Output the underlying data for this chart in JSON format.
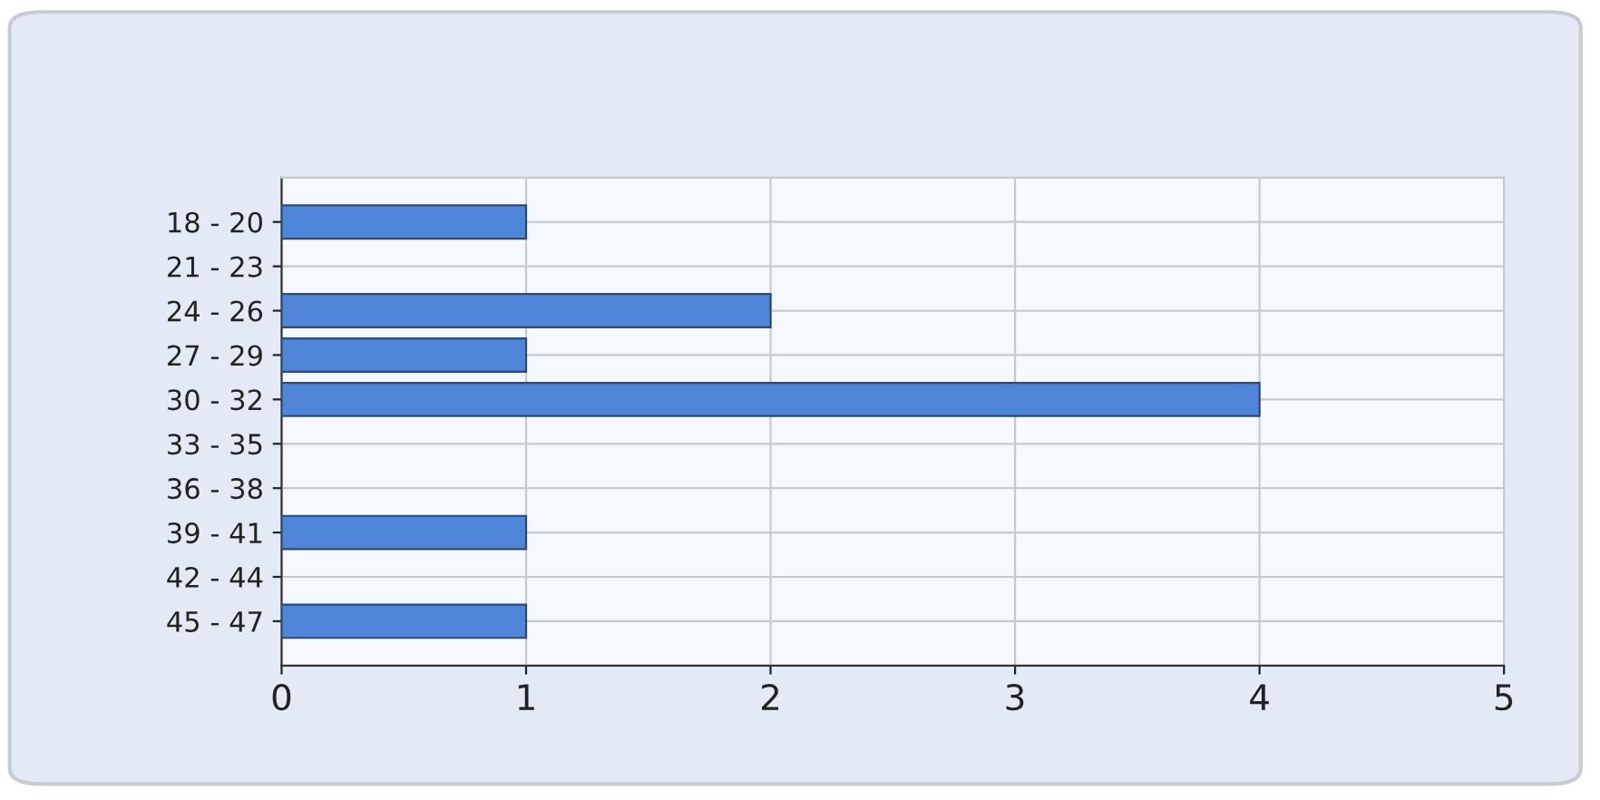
{
  "chart_data": {
    "type": "bar",
    "orientation": "horizontal",
    "categories": [
      "18 - 20",
      "21 - 23",
      "24 - 26",
      "27 - 29",
      "30 - 32",
      "33 - 35",
      "36 - 38",
      "39 - 41",
      "42 - 44",
      "45 - 47"
    ],
    "values": [
      1,
      0,
      2,
      1,
      4,
      0,
      0,
      1,
      0,
      1
    ],
    "color": "#4f86d9",
    "xlim": [
      0,
      5
    ],
    "xticks": [
      0,
      1,
      2,
      3,
      4,
      5
    ],
    "grid": true
  }
}
